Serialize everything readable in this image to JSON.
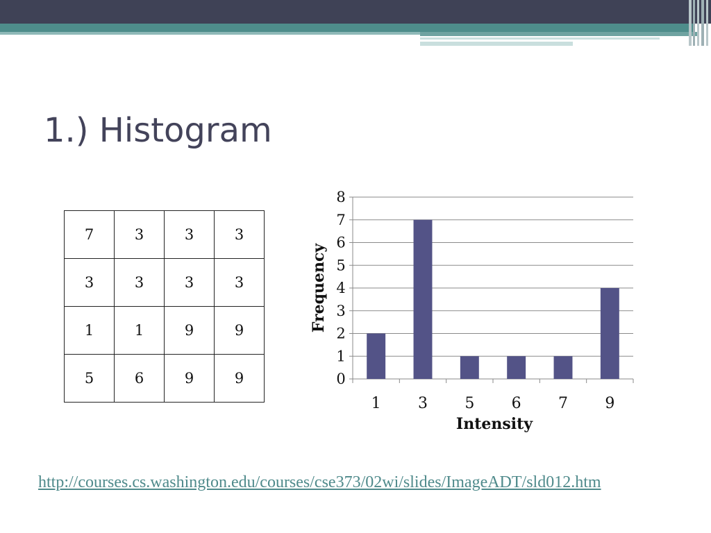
{
  "slide": {
    "title": "1.) Histogram",
    "source_link": "http://courses.cs.washington.edu/courses/cse373/02wi/slides/ImageADT/sld012.htm"
  },
  "image_matrix": [
    [
      "7",
      "3",
      "3",
      "3"
    ],
    [
      "3",
      "3",
      "3",
      "3"
    ],
    [
      "1",
      "1",
      "9",
      "9"
    ],
    [
      "5",
      "6",
      "9",
      "9"
    ]
  ],
  "colors": {
    "bar": "#535387",
    "title": "#43435a",
    "link": "#4f8a8b"
  },
  "chart_data": {
    "type": "bar",
    "categories": [
      "1",
      "3",
      "5",
      "6",
      "7",
      "9"
    ],
    "values": [
      2,
      7,
      1,
      1,
      1,
      4
    ],
    "title": "",
    "xlabel": "Intensity",
    "ylabel": "Frequency",
    "ylim": [
      0,
      8
    ],
    "yticks": [
      "0",
      "1",
      "2",
      "3",
      "4",
      "5",
      "6",
      "7",
      "8"
    ],
    "grid": true,
    "legend": "none"
  }
}
